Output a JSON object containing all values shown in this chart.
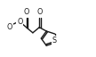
{
  "bg_color": "#ffffff",
  "line_color": "#1a1a1a",
  "line_width": 1.0,
  "figsize": [
    1.08,
    0.64
  ],
  "dpi": 100,
  "xlim": [
    -1.0,
    1.15
  ],
  "ylim": [
    -0.55,
    0.85
  ],
  "font_size": 5.8
}
